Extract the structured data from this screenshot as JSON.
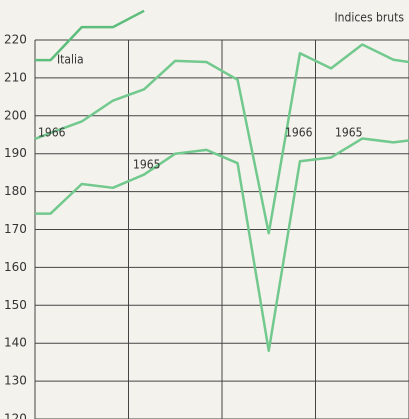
{
  "chart_data": {
    "type": "line",
    "title": "Indices bruts",
    "x": [
      0,
      0.5,
      1.5,
      2.5,
      3.5,
      4.5,
      5.5,
      6.5,
      7.5,
      8.5,
      9.5,
      10.5,
      11.5,
      12
    ],
    "xlim": [
      0,
      12
    ],
    "xticks": [
      0,
      3,
      6,
      9,
      12
    ],
    "ylim": [
      120,
      220
    ],
    "yticks": [
      120,
      130,
      140,
      150,
      160,
      170,
      180,
      190,
      200,
      210,
      220
    ],
    "grid": true,
    "series": [
      {
        "name": "Italia",
        "color": "#5dbd7c",
        "values": [
          214.7,
          214.7,
          223.4,
          223.4,
          227.7,
          null,
          null,
          null,
          null,
          null,
          null,
          null,
          null,
          null
        ]
      },
      {
        "name": "1966",
        "color": "#72c98e",
        "values": [
          193.9,
          195.5,
          198.5,
          204,
          207,
          214.5,
          214.2,
          209.5,
          169,
          216.5,
          212.5,
          218.8,
          214.8,
          214.2
        ]
      },
      {
        "name": "1965",
        "color": "#72c98e",
        "values": [
          174.2,
          174.2,
          182,
          181,
          184.5,
          190,
          191,
          187.5,
          138,
          188,
          189,
          194,
          193,
          193.5
        ]
      }
    ],
    "annotations": [
      "1966",
      "1965",
      "1966",
      "1965"
    ]
  }
}
